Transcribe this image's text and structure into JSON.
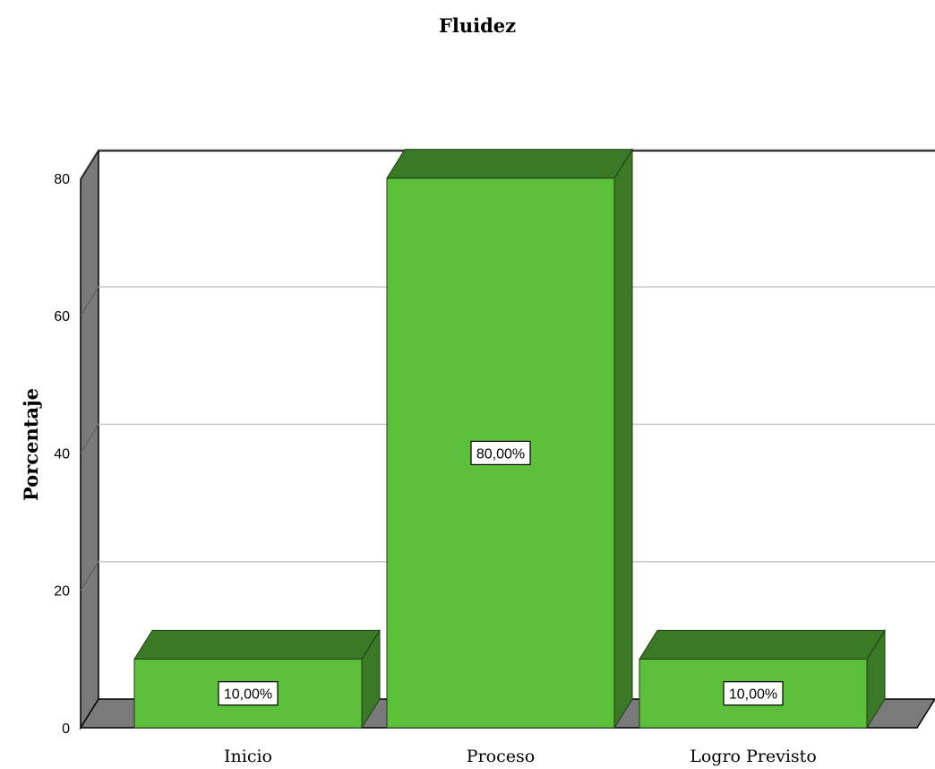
{
  "chart_data": {
    "type": "bar",
    "title": "Fluidez",
    "xlabel": "",
    "ylabel": "Porcentaje",
    "categories": [
      "Inicio",
      "Proceso",
      "Logro Previsto"
    ],
    "values": [
      10,
      80,
      10
    ],
    "data_labels": [
      "10,00%",
      "80,00%",
      "10,00%"
    ],
    "ylim": [
      0,
      84
    ],
    "yticks": [
      0,
      20,
      40,
      60,
      80
    ],
    "grid": true,
    "style": "3d",
    "colors": {
      "bar_front": "#5CC03A",
      "bar_top": "#3A7A26",
      "bar_side": "#3A7A26",
      "floor_wall": "#7A7A7A",
      "gridline": "#C8C8C8"
    }
  }
}
